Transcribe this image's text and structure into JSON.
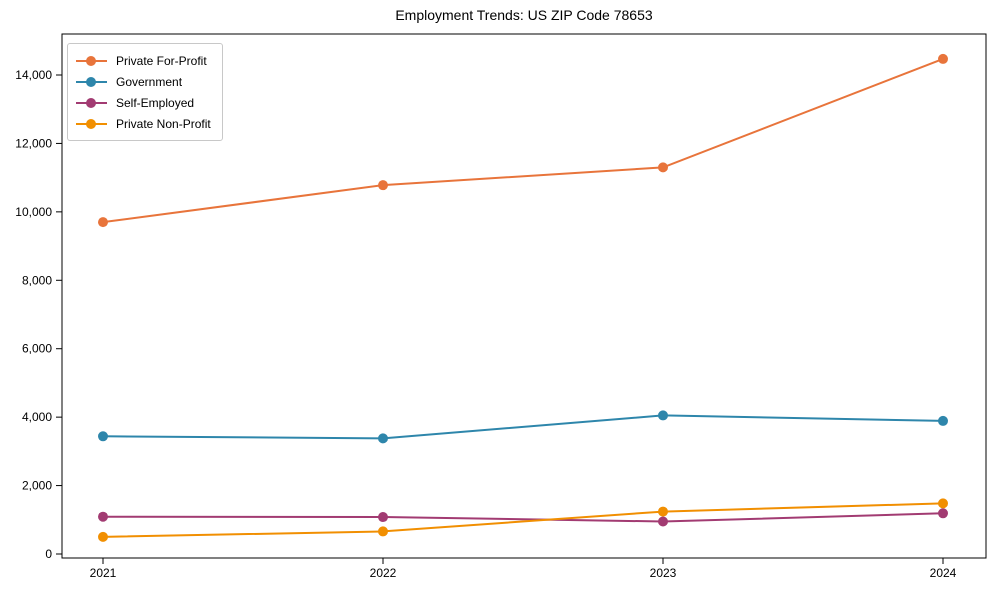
{
  "chart_data": {
    "type": "line",
    "title": "Employment Trends: US ZIP Code 78653",
    "xlabel": "",
    "ylabel": "",
    "categories": [
      "2021",
      "2022",
      "2023",
      "2024"
    ],
    "series": [
      {
        "name": "Private For-Profit",
        "color": "#E8743B",
        "values": [
          9700,
          10780,
          11300,
          14470
        ]
      },
      {
        "name": "Government",
        "color": "#2E86AB",
        "values": [
          3440,
          3380,
          4050,
          3890
        ]
      },
      {
        "name": "Self-Employed",
        "color": "#A23B72",
        "values": [
          1090,
          1080,
          950,
          1190
        ]
      },
      {
        "name": "Private Non-Profit",
        "color": "#F18F01",
        "values": [
          500,
          660,
          1240,
          1480
        ]
      }
    ],
    "yticks": [
      0,
      2000,
      4000,
      6000,
      8000,
      10000,
      12000,
      14000
    ],
    "ylim": [
      0,
      15300
    ],
    "grid": false,
    "legend_position": "upper-left",
    "axis_color": "#000000",
    "background_color": "#ffffff",
    "marker": "circle",
    "line_width": 2,
    "marker_radius": 5
  }
}
